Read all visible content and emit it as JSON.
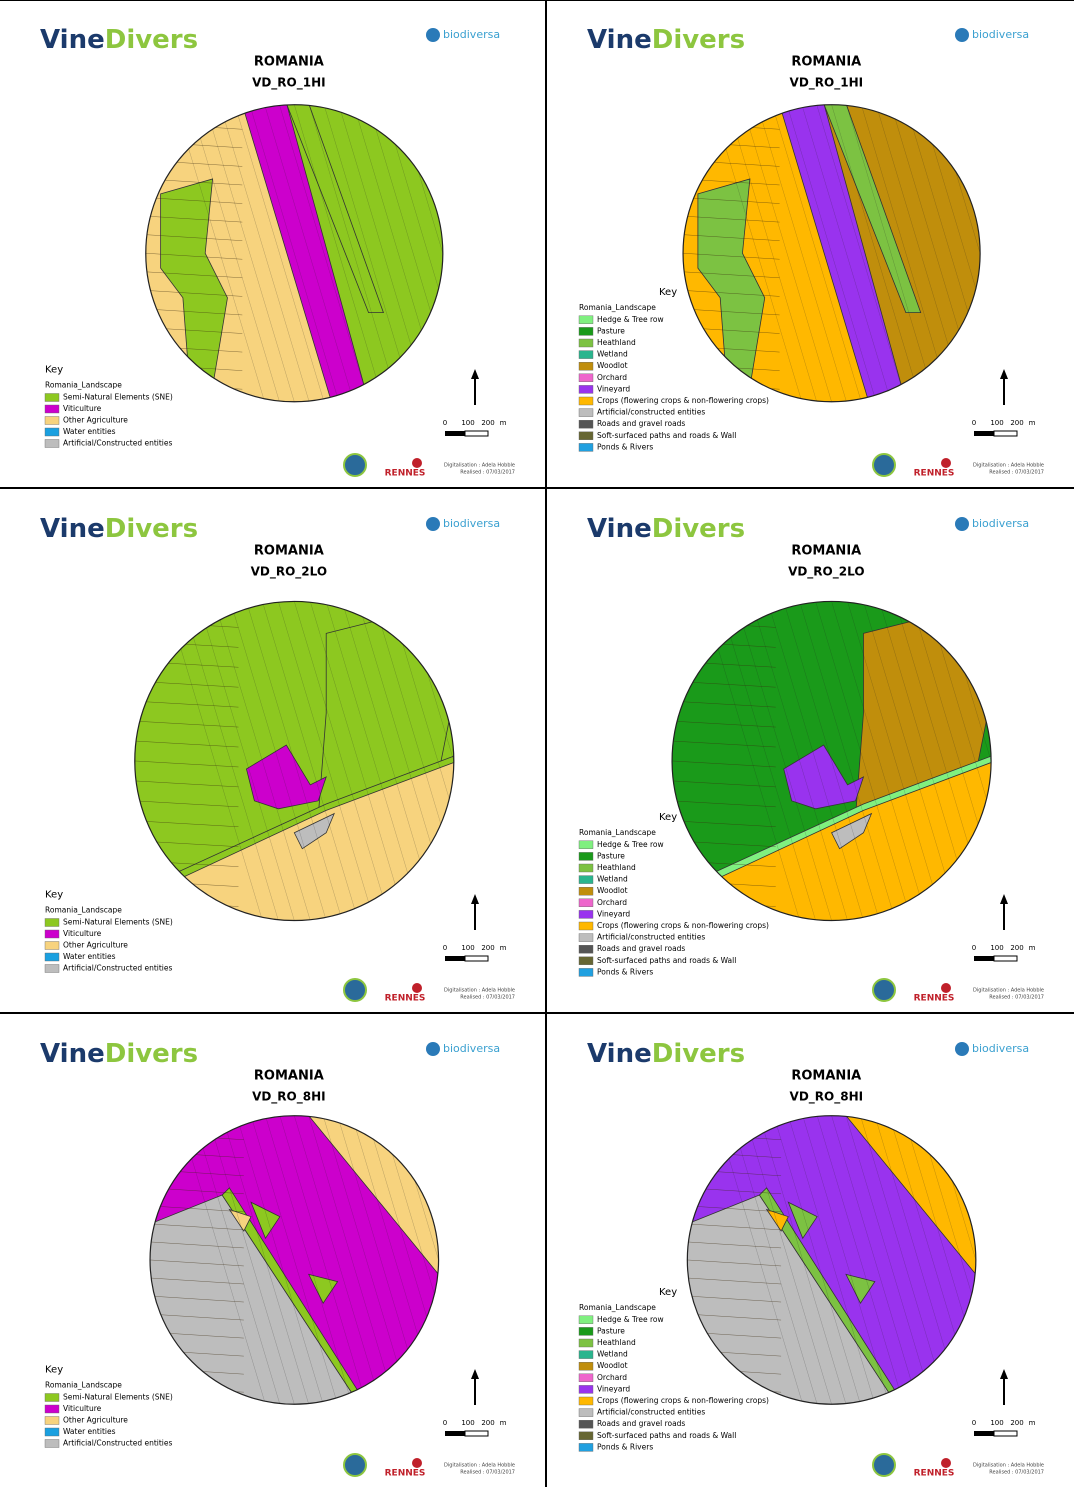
{
  "panels": [
    {
      "logo": {
        "vine": "Vine",
        "divers": "Divers"
      },
      "partner": "biodiversa",
      "country": "ROMANIA",
      "site": "VD_RO_1HI",
      "key": {
        "title": "Key",
        "layer": "Romania_Landscape",
        "items": [
          {
            "label": "Semi-Natural Elements (SNE)",
            "color": "#8dc820"
          },
          {
            "label": "Viticulture",
            "color": "#cc00cc"
          },
          {
            "label": "Other Agriculture",
            "color": "#f7d37e"
          },
          {
            "label": "Water entities",
            "color": "#1aa0e0"
          },
          {
            "label": "Artificial/Constructed entities",
            "color": "#bdbdbd"
          }
        ]
      },
      "scale": [
        "0",
        "100",
        "200",
        "m"
      ],
      "university": "RENNES",
      "credits": [
        "Digitalisation : Adela Hobble",
        "Realised : 07/03/2017"
      ]
    },
    {
      "logo": {
        "vine": "Vine",
        "divers": "Divers"
      },
      "partner": "biodiversa",
      "country": "ROMANIA",
      "site": "VD_RO_1HI",
      "key": {
        "title": "Key",
        "layer": "Romania_Landscape",
        "items": [
          {
            "label": "Hedge & Tree row",
            "color": "#80f080"
          },
          {
            "label": "Pasture",
            "color": "#1a9a1a"
          },
          {
            "label": "Heathland",
            "color": "#7cc242"
          },
          {
            "label": "Wetland",
            "color": "#2ab58e"
          },
          {
            "label": "Woodlot",
            "color": "#c08e0c"
          },
          {
            "label": "Orchard",
            "color": "#ee66cc"
          },
          {
            "label": "Vineyard",
            "color": "#9933ee"
          },
          {
            "label": "Crops (flowering crops & non-flowering crops)",
            "color": "#ffb800"
          },
          {
            "label": "Artificial/constructed entities",
            "color": "#bdbdbd"
          },
          {
            "label": "Roads and gravel roads",
            "color": "#555555"
          },
          {
            "label": "Soft-surfaced paths and roads & Wall",
            "color": "#666633"
          },
          {
            "label": "Ponds & Rivers",
            "color": "#20a0e0"
          }
        ]
      },
      "scale": [
        "0",
        "100",
        "200",
        "m"
      ],
      "university": "RENNES",
      "credits": [
        "Digitalisation : Adela Hobble",
        "Realised : 07/03/2017"
      ]
    },
    {
      "logo": {
        "vine": "Vine",
        "divers": "Divers"
      },
      "partner": "biodiversa",
      "country": "ROMANIA",
      "site": "VD_RO_2LO",
      "key": {
        "title": "Key",
        "layer": "Romania_Landscape",
        "items": [
          {
            "label": "Semi-Natural Elements (SNE)",
            "color": "#8dc820"
          },
          {
            "label": "Viticulture",
            "color": "#cc00cc"
          },
          {
            "label": "Other Agriculture",
            "color": "#f7d37e"
          },
          {
            "label": "Water entities",
            "color": "#1aa0e0"
          },
          {
            "label": "Artificial/Constructed entities",
            "color": "#bdbdbd"
          }
        ]
      },
      "scale": [
        "0",
        "100",
        "200",
        "m"
      ],
      "university": "RENNES",
      "credits": [
        "Digitalisation : Adela Hobble",
        "Realised : 07/03/2017"
      ]
    },
    {
      "logo": {
        "vine": "Vine",
        "divers": "Divers"
      },
      "partner": "biodiversa",
      "country": "ROMANIA",
      "site": "VD_RO_2LO",
      "key": {
        "title": "Key",
        "layer": "Romania_Landscape",
        "items": [
          {
            "label": "Hedge & Tree row",
            "color": "#80f080"
          },
          {
            "label": "Pasture",
            "color": "#1a9a1a"
          },
          {
            "label": "Heathland",
            "color": "#7cc242"
          },
          {
            "label": "Wetland",
            "color": "#2ab58e"
          },
          {
            "label": "Woodlot",
            "color": "#c08e0c"
          },
          {
            "label": "Orchard",
            "color": "#ee66cc"
          },
          {
            "label": "Vineyard",
            "color": "#9933ee"
          },
          {
            "label": "Crops (flowering crops & non-flowering crops)",
            "color": "#ffb800"
          },
          {
            "label": "Artificial/constructed entities",
            "color": "#bdbdbd"
          },
          {
            "label": "Roads and gravel roads",
            "color": "#555555"
          },
          {
            "label": "Soft-surfaced paths and roads & Wall",
            "color": "#666633"
          },
          {
            "label": "Ponds & Rivers",
            "color": "#20a0e0"
          }
        ]
      },
      "scale": [
        "0",
        "100",
        "200",
        "m"
      ],
      "university": "RENNES",
      "credits": [
        "Digitalisation : Adela Hobble",
        "Realised : 07/03/2017"
      ]
    },
    {
      "logo": {
        "vine": "Vine",
        "divers": "Divers"
      },
      "partner": "biodiversa",
      "country": "ROMANIA",
      "site": "VD_RO_8HI",
      "key": {
        "title": "Key",
        "layer": "Romania_Landscape",
        "items": [
          {
            "label": "Semi-Natural Elements (SNE)",
            "color": "#8dc820"
          },
          {
            "label": "Viticulture",
            "color": "#cc00cc"
          },
          {
            "label": "Other Agriculture",
            "color": "#f7d37e"
          },
          {
            "label": "Water entities",
            "color": "#1aa0e0"
          },
          {
            "label": "Artificial/Constructed entities",
            "color": "#bdbdbd"
          }
        ]
      },
      "scale": [
        "0",
        "100",
        "200",
        "m"
      ],
      "university": "RENNES",
      "credits": [
        "Digitalisation : Adela Hobble",
        "Realised : 07/03/2017"
      ]
    },
    {
      "logo": {
        "vine": "Vine",
        "divers": "Divers"
      },
      "partner": "biodiversa",
      "country": "ROMANIA",
      "site": "VD_RO_8HI",
      "key": {
        "title": "Key",
        "layer": "Romania_Landscape",
        "items": [
          {
            "label": "Hedge & Tree row",
            "color": "#80f080"
          },
          {
            "label": "Pasture",
            "color": "#1a9a1a"
          },
          {
            "label": "Heathland",
            "color": "#7cc242"
          },
          {
            "label": "Wetland",
            "color": "#2ab58e"
          },
          {
            "label": "Woodlot",
            "color": "#c08e0c"
          },
          {
            "label": "Orchard",
            "color": "#ee66cc"
          },
          {
            "label": "Vineyard",
            "color": "#9933ee"
          },
          {
            "label": "Crops (flowering crops & non-flowering crops)",
            "color": "#ffb800"
          },
          {
            "label": "Artificial/constructed entities",
            "color": "#bdbdbd"
          },
          {
            "label": "Roads and gravel roads",
            "color": "#555555"
          },
          {
            "label": "Soft-surfaced paths and roads & Wall",
            "color": "#666633"
          },
          {
            "label": "Ponds & Rivers",
            "color": "#20a0e0"
          }
        ]
      },
      "scale": [
        "0",
        "100",
        "200",
        "m"
      ],
      "university": "RENNES",
      "credits": [
        "Digitalisation : Adela Hobble",
        "Realised : 07/03/2017"
      ]
    }
  ]
}
